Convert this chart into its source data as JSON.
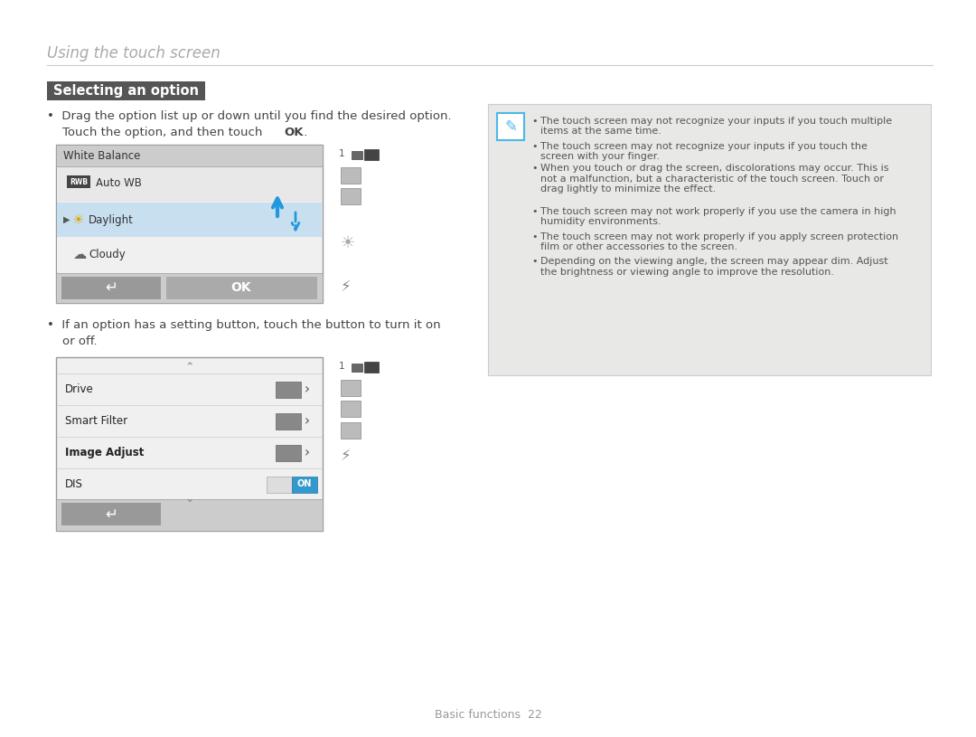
{
  "bg_color": "#ffffff",
  "page_title": "Using the touch screen",
  "page_title_color": "#aaaaaa",
  "page_title_fontsize": 12,
  "header_line_color": "#cccccc",
  "section_title": "Selecting an option",
  "section_title_bg": "#555555",
  "section_title_color": "#ffffff",
  "section_title_fontsize": 10.5,
  "body_text_color": "#444444",
  "body_fontsize": 9.5,
  "note_bg_color": "#e8e8e6",
  "note_border_color": "#cccccc",
  "note_icon_color": "#4db8e8",
  "note_text_color": "#555555",
  "note_fontsize": 8.0,
  "footer_text": "Basic functions  22",
  "footer_fontsize": 9,
  "footer_color": "#999999",
  "screen1_header": "White Balance",
  "screen1_items": [
    "Auto WB",
    "Daylight",
    "Cloudy"
  ],
  "screen2_items": [
    "Drive",
    "Smart Filter",
    "Image Adjust",
    "DIS"
  ],
  "note_bullets": [
    "The touch screen may not recognize your inputs if you touch multiple items at the same time.",
    "The touch screen may not recognize your inputs if you touch the screen with your finger.",
    "When you touch or drag the screen, discolorations may occur. This is not a malfunction, but a characteristic of the touch screen. Touch or drag lightly to minimize the effect.",
    "The touch screen may not work properly if you use the camera in high humidity environments.",
    "The touch screen may not work properly if you apply screen protection film or other accessories to the screen.",
    "Depending on the viewing angle, the screen may appear dim. Adjust the brightness or viewing angle to improve the resolution."
  ]
}
